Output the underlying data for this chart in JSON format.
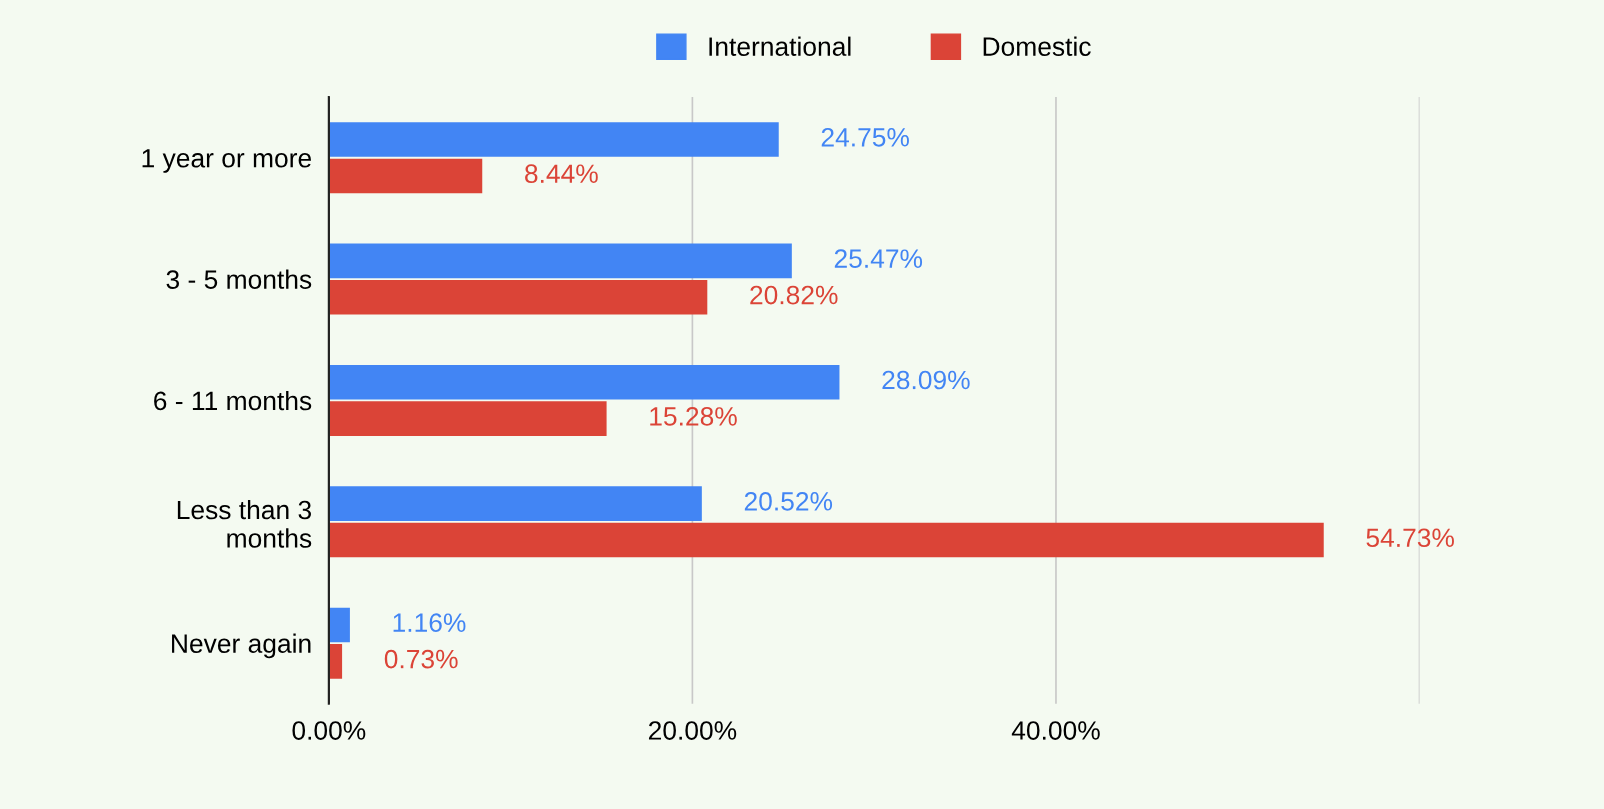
{
  "chart_data": {
    "type": "bar",
    "orientation": "horizontal",
    "categories": [
      "1 year or more",
      "3 - 5 months",
      "6 - 11 months",
      "Less than 3\nmonths",
      "Never again"
    ],
    "series": [
      {
        "name": "International",
        "color": "#4285f4",
        "values": [
          24.75,
          25.47,
          28.09,
          20.52,
          1.16
        ],
        "value_labels": [
          "24.75%",
          "25.47%",
          "28.09%",
          "20.52%",
          "1.16%"
        ]
      },
      {
        "name": "Domestic",
        "color": "#db4437",
        "values": [
          8.44,
          20.82,
          15.28,
          54.73,
          0.73
        ],
        "value_labels": [
          "8.44%",
          "20.82%",
          "15.28%",
          "54.73%",
          "0.73%"
        ]
      }
    ],
    "xlim": [
      0,
      60
    ],
    "xticks": [
      {
        "value": 0,
        "label": "0.00%"
      },
      {
        "value": 20,
        "label": "20.00%"
      },
      {
        "value": 40,
        "label": "40.00%"
      },
      {
        "value": 60,
        "label": null
      }
    ],
    "grid": "x",
    "legend": "top"
  }
}
